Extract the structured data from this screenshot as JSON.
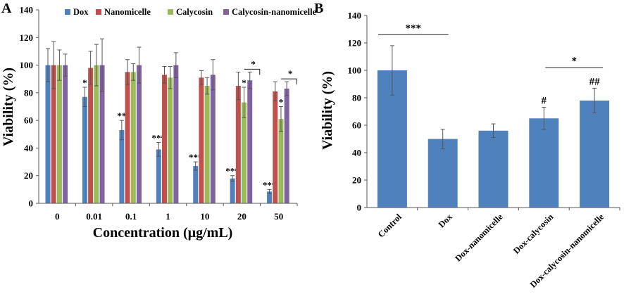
{
  "chart_data": [
    {
      "panel": "A",
      "type": "bar",
      "xlabel": "Concentration (µg/mL)",
      "ylabel": "Viability (%)",
      "ylim": [
        0,
        140
      ],
      "yticks": [
        "0",
        "20",
        "40",
        "60",
        "80",
        "100",
        "120",
        "140"
      ],
      "legend_position": "top",
      "categories": [
        "0",
        "0.01",
        "0.1",
        "1",
        "10",
        "20",
        "50"
      ],
      "series": [
        {
          "name": "Dox",
          "color": "#4F81BD",
          "values": [
            100,
            77,
            53,
            39,
            27,
            18,
            8.5
          ],
          "errors": [
            12,
            7,
            7,
            5,
            3,
            2,
            1.5
          ],
          "sig": [
            "",
            "*",
            "**",
            "***",
            "***",
            "***",
            "***"
          ]
        },
        {
          "name": "Nanomicelle",
          "color": "#C0504D",
          "values": [
            100,
            98,
            95,
            93,
            91,
            85,
            81
          ],
          "errors": [
            17,
            12,
            9,
            6,
            5,
            10,
            7
          ],
          "sig": [
            "",
            "",
            "",
            "",
            "",
            "",
            ""
          ]
        },
        {
          "name": "Calycosin",
          "color": "#9BBB59",
          "values": [
            100,
            100,
            95,
            91,
            85,
            73,
            61
          ],
          "errors": [
            11,
            15,
            6,
            8,
            6,
            11,
            9
          ],
          "sig": [
            "",
            "",
            "",
            "",
            "",
            "*",
            "*"
          ]
        },
        {
          "name": "Calycosin-nanomicelle",
          "color": "#8064A2",
          "values": [
            100,
            100,
            100,
            100,
            93,
            89,
            83
          ],
          "errors": [
            8,
            19,
            13,
            9,
            11,
            6,
            5
          ],
          "sig": [
            "",
            "",
            "",
            "",
            "",
            "",
            ""
          ]
        }
      ],
      "comparisons": [
        {
          "category": "20",
          "from": "Calycosin",
          "to": "Calycosin-nanomicelle",
          "label": "*"
        },
        {
          "category": "50",
          "from": "Calycosin",
          "to": "Calycosin-nanomicelle",
          "label": "*"
        }
      ]
    },
    {
      "panel": "B",
      "type": "bar",
      "xlabel": "",
      "ylabel": "Viability (%)",
      "ylim": [
        0,
        140
      ],
      "yticks": [
        "0",
        "20",
        "40",
        "60",
        "80",
        "100",
        "120",
        "140"
      ],
      "color": "#4F81BD",
      "categories": [
        "Control",
        "Dox",
        "Dox-nanomicelle",
        "Dox-calycosin",
        "Dox-calycosin-nanomicelle"
      ],
      "values": [
        100,
        50,
        56,
        65,
        78
      ],
      "errors": [
        18,
        7,
        5,
        8,
        9
      ],
      "sig": [
        "",
        "",
        "",
        "#",
        "##"
      ],
      "comparisons": [
        {
          "from": "Control",
          "to": "Dox",
          "label": "***"
        },
        {
          "from": "Dox-calycosin",
          "to": "Dox-calycosin-nanomicelle",
          "label": "*"
        }
      ]
    }
  ]
}
